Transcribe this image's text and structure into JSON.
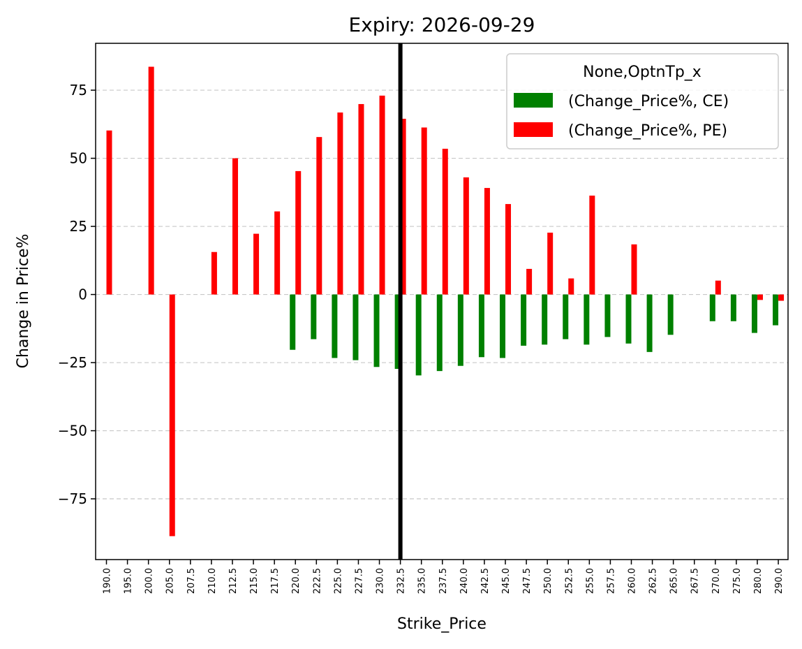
{
  "chart_data": {
    "type": "bar",
    "title": "Expiry: 2026-09-29",
    "xlabel": "Strike_Price",
    "ylabel": "Change in Price%",
    "categories": [
      "190.0",
      "195.0",
      "200.0",
      "205.0",
      "207.5",
      "210.0",
      "212.5",
      "215.0",
      "217.5",
      "220.0",
      "222.5",
      "225.0",
      "227.5",
      "230.0",
      "232.5",
      "235.0",
      "237.5",
      "240.0",
      "242.5",
      "245.0",
      "247.5",
      "250.0",
      "252.5",
      "255.0",
      "257.5",
      "260.0",
      "262.5",
      "265.0",
      "267.5",
      "270.0",
      "275.0",
      "280.0",
      "290.0"
    ],
    "series": [
      {
        "name": "(Change_Price%, CE)",
        "color": "#008000",
        "values": [
          0,
          0,
          0,
          0,
          0,
          0,
          0,
          0,
          0,
          -20.3,
          -16.4,
          -23.3,
          -24.1,
          -26.6,
          -27.3,
          -29.7,
          -28.1,
          -26.2,
          -23.0,
          -23.3,
          -18.8,
          -18.4,
          -16.4,
          -18.4,
          -15.6,
          -18.0,
          -21.1,
          -14.8,
          0,
          -9.8,
          -9.8,
          -14.1,
          -11.3
        ]
      },
      {
        "name": "(Change_Price%, PE)",
        "color": "#ff0000",
        "values": [
          60.2,
          0,
          83.6,
          -88.7,
          0,
          15.6,
          50.0,
          22.3,
          30.5,
          45.3,
          57.8,
          66.8,
          69.9,
          73.0,
          64.5,
          61.3,
          53.5,
          43.0,
          39.1,
          33.2,
          9.4,
          22.7,
          5.9,
          36.3,
          0,
          18.4,
          0,
          0,
          0,
          5.1,
          0,
          -2.0,
          -2.3
        ]
      }
    ],
    "yticks": [
      -75,
      -50,
      -25,
      0,
      25,
      50,
      75
    ],
    "ylim": [
      -97.3,
      92.2
    ],
    "vline_at": "232.5",
    "grid": "y-dashed",
    "legend": {
      "title": "None,OptnTp_x",
      "position": "top-right"
    }
  }
}
